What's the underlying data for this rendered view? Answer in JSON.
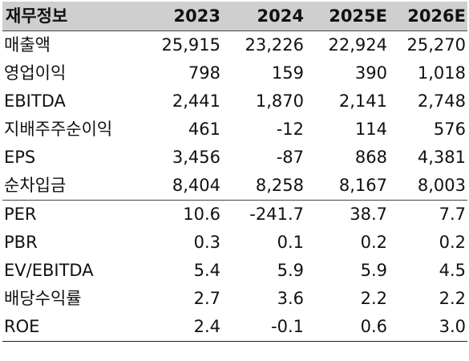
{
  "table": {
    "header": [
      "재무정보",
      "2023",
      "2024",
      "2025E",
      "2026E"
    ],
    "rows": [
      {
        "label": "매출액",
        "values": [
          "25,915",
          "23,226",
          "22,924",
          "25,270"
        ]
      },
      {
        "label": "영업이익",
        "values": [
          "798",
          "159",
          "390",
          "1,018"
        ]
      },
      {
        "label": "EBITDA",
        "values": [
          "2,441",
          "1,870",
          "2,141",
          "2,748"
        ]
      },
      {
        "label": "지배주주순이익",
        "values": [
          "461",
          "-12",
          "114",
          "576"
        ]
      },
      {
        "label": "EPS",
        "values": [
          "3,456",
          "-87",
          "868",
          "4,381"
        ]
      },
      {
        "label": "순차입금",
        "values": [
          "8,404",
          "8,258",
          "8,167",
          "8,003"
        ]
      },
      {
        "label": "PER",
        "values": [
          "10.6",
          "-241.7",
          "38.7",
          "7.7"
        ]
      },
      {
        "label": "PBR",
        "values": [
          "0.3",
          "0.1",
          "0.2",
          "0.2"
        ]
      },
      {
        "label": "EV/EBITDA",
        "values": [
          "5.4",
          "5.9",
          "5.9",
          "4.5"
        ]
      },
      {
        "label": "배당수익률",
        "values": [
          "2.7",
          "3.6",
          "2.2",
          "2.2"
        ]
      },
      {
        "label": "ROE",
        "values": [
          "2.4",
          "-0.1",
          "0.6",
          "3.0"
        ]
      }
    ]
  },
  "colors": {
    "header_bg": "#cfcfcf",
    "text": "#111111",
    "rule": "#444444"
  }
}
